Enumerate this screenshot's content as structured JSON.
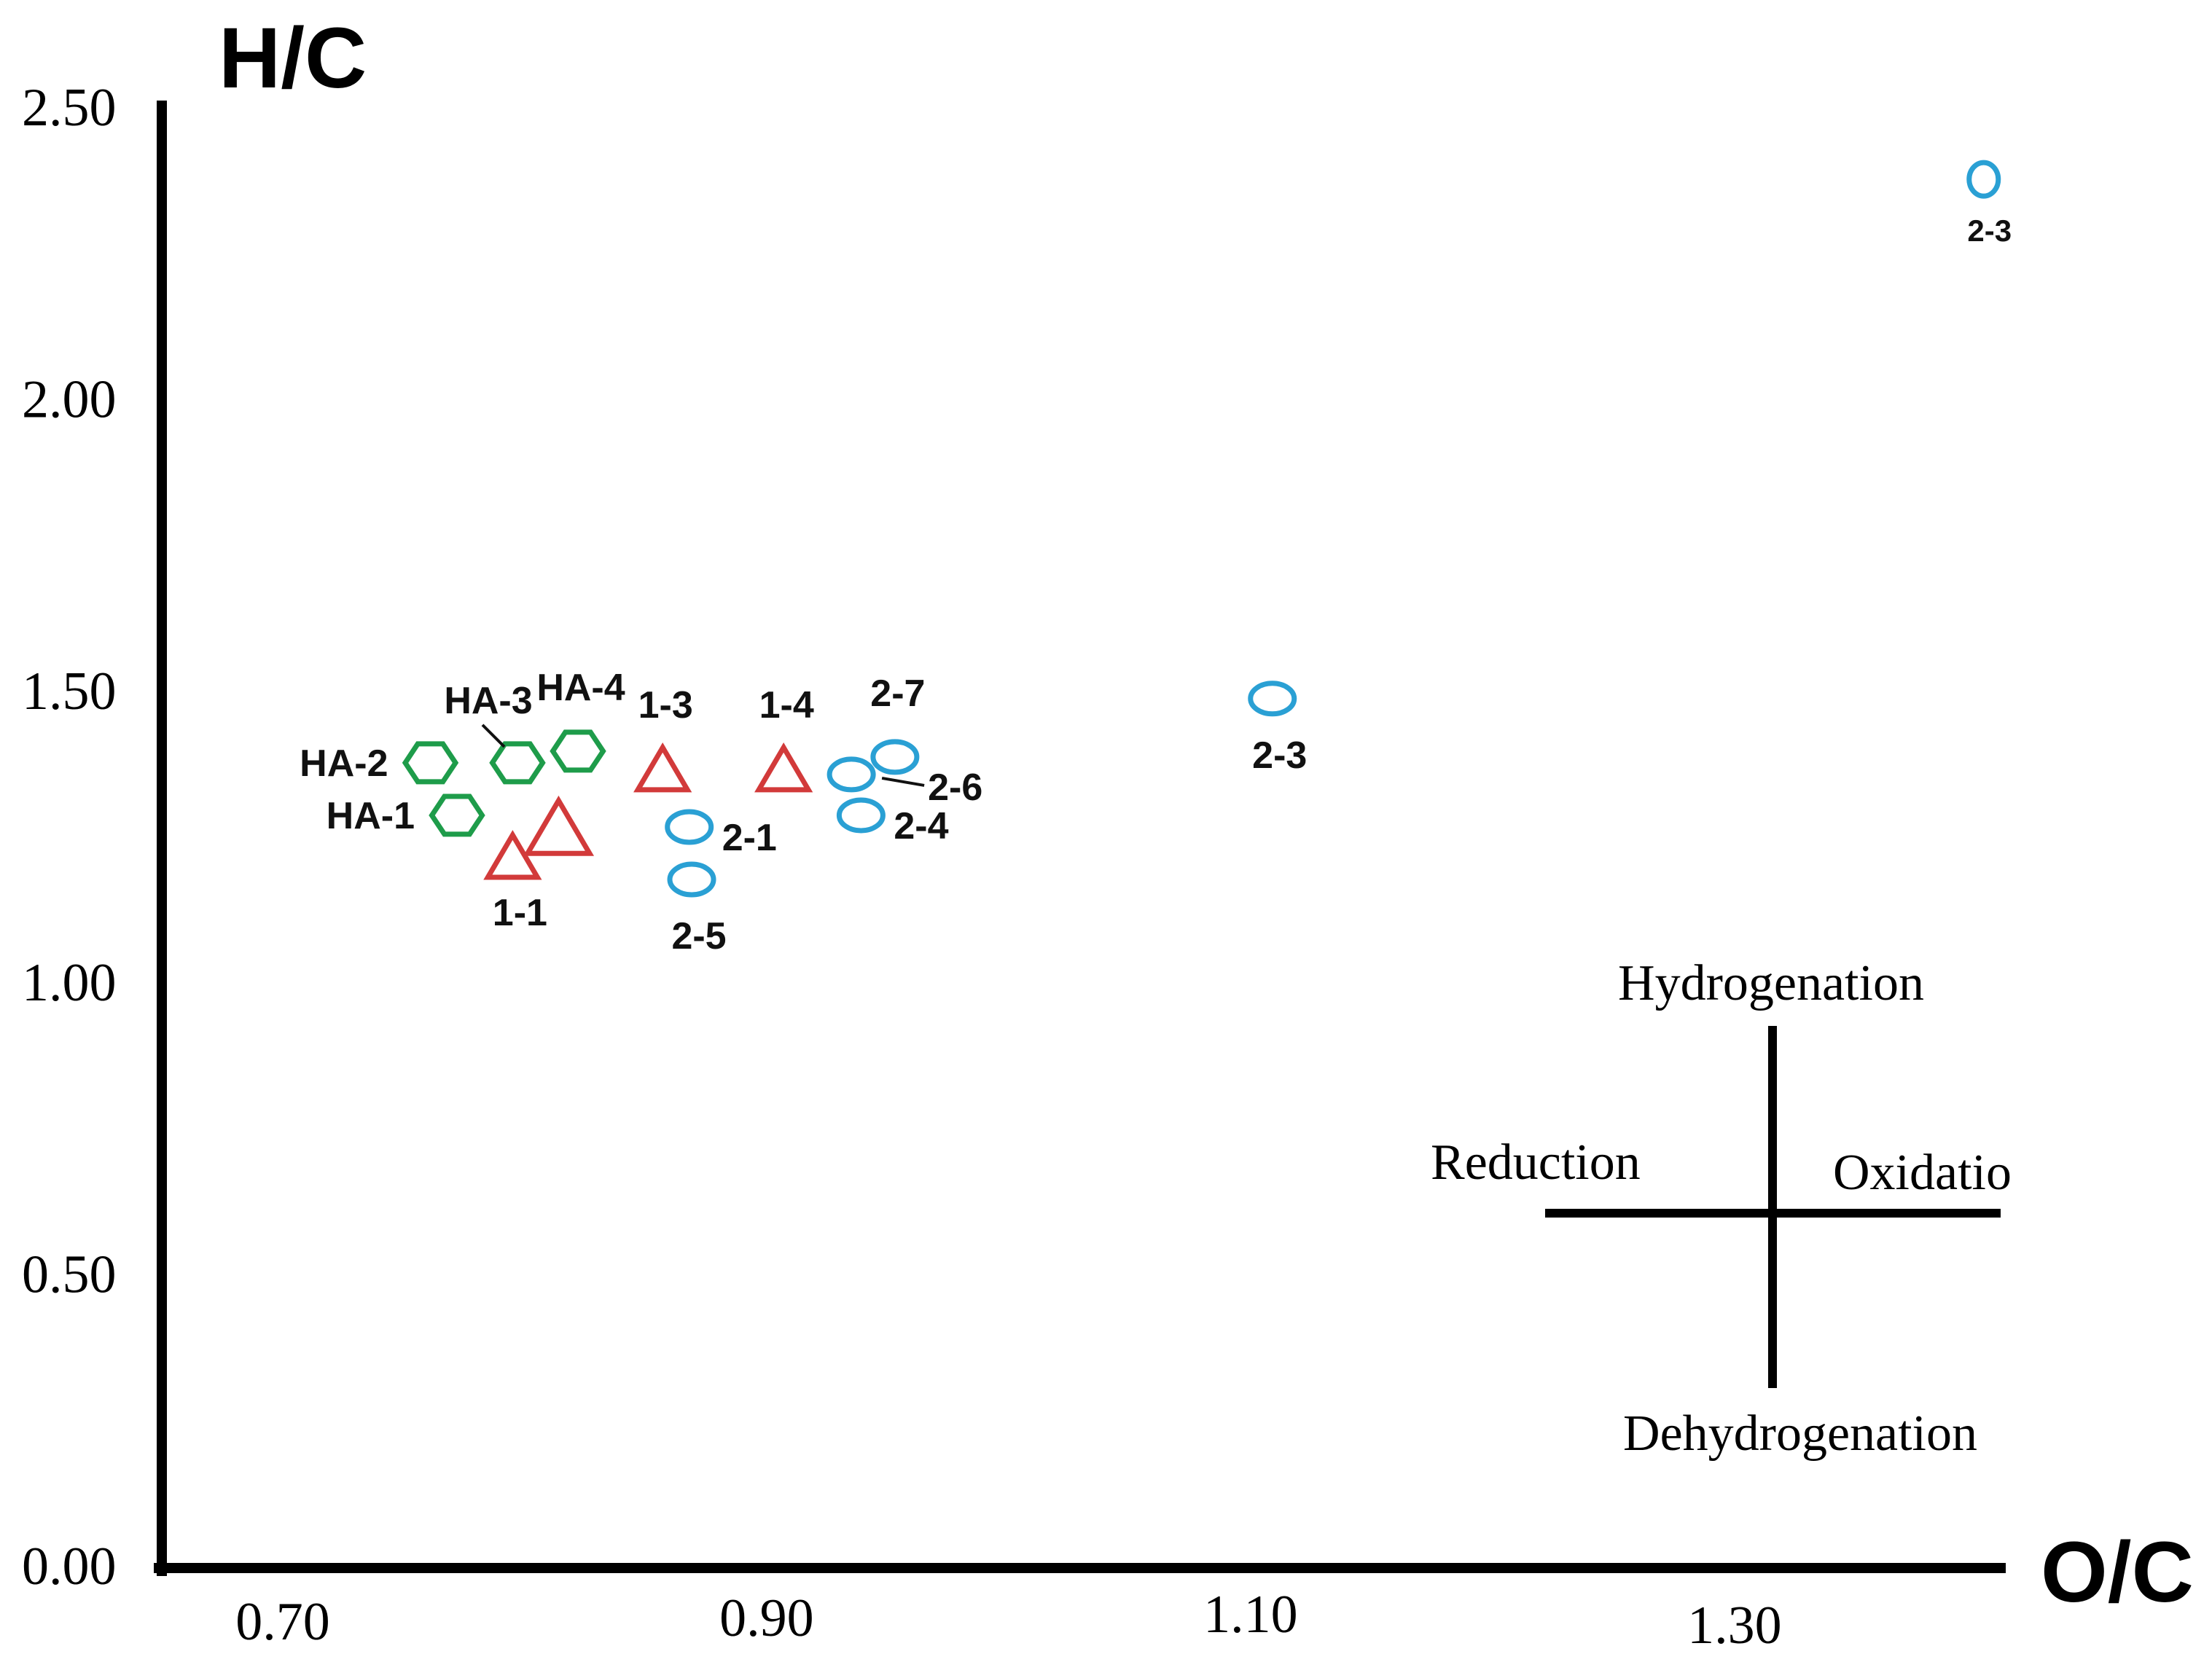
{
  "chart_data": {
    "type": "scatter",
    "title": "",
    "xlabel": "O/C",
    "ylabel": "H/C",
    "xlim": [
      0.65,
      1.41
    ],
    "ylim": [
      0.0,
      2.5
    ],
    "x_ticks": [
      "0.70",
      "0.90",
      "1.10",
      "1.30"
    ],
    "y_ticks": [
      "0.00",
      "0.50",
      "1.00",
      "1.50",
      "2.00",
      "2.50"
    ],
    "grid": false,
    "series": [
      {
        "name": "HA",
        "marker": "hexagon",
        "color": "#1e9c4a",
        "points": [
          {
            "label": "HA-1",
            "x": 0.772,
            "y": 1.29,
            "label_pos": "left"
          },
          {
            "label": "HA-2",
            "x": 0.761,
            "y": 1.38,
            "label_pos": "left"
          },
          {
            "label": "HA-3",
            "x": 0.797,
            "y": 1.38,
            "label_pos": "upper-left-leader"
          },
          {
            "label": "HA-4",
            "x": 0.822,
            "y": 1.4,
            "label_pos": "top"
          }
        ]
      },
      {
        "name": "Group 1",
        "marker": "triangle",
        "color": "#d23a3a",
        "points": [
          {
            "label": "1-1",
            "x": 0.795,
            "y": 1.22,
            "label_pos": "bottom"
          },
          {
            "label": "",
            "x": 0.814,
            "y": 1.27,
            "label_pos": "none"
          },
          {
            "label": "1-3",
            "x": 0.857,
            "y": 1.37,
            "label_pos": "top"
          },
          {
            "label": "1-4",
            "x": 0.907,
            "y": 1.37,
            "label_pos": "top"
          }
        ]
      },
      {
        "name": "Group 2",
        "marker": "ellipse",
        "color": "#2aa0d4",
        "points": [
          {
            "label": "2-1",
            "x": 0.868,
            "y": 1.27,
            "label_pos": "right"
          },
          {
            "label": "2-5",
            "x": 0.869,
            "y": 1.18,
            "label_pos": "bottom"
          },
          {
            "label": "",
            "x": 0.935,
            "y": 1.36,
            "label_pos": "none"
          },
          {
            "label": "2-6",
            "x": 0.935,
            "y": 1.36,
            "label_pos": "right-leader"
          },
          {
            "label": "2-4",
            "x": 0.939,
            "y": 1.29,
            "label_pos": "right"
          },
          {
            "label": "2-7",
            "x": 0.953,
            "y": 1.39,
            "label_pos": "top"
          },
          {
            "label": "2-3",
            "x": 1.109,
            "y": 1.49,
            "label_pos": "bottom"
          },
          {
            "label": "2-3",
            "x": 1.403,
            "y": 2.38,
            "label_pos": "bottom-small"
          }
        ]
      }
    ],
    "annotations": {
      "top": "Hydrogenation",
      "left": "Reduction",
      "right": "Oxidatio",
      "bottom": "Dehydrogenation"
    }
  }
}
